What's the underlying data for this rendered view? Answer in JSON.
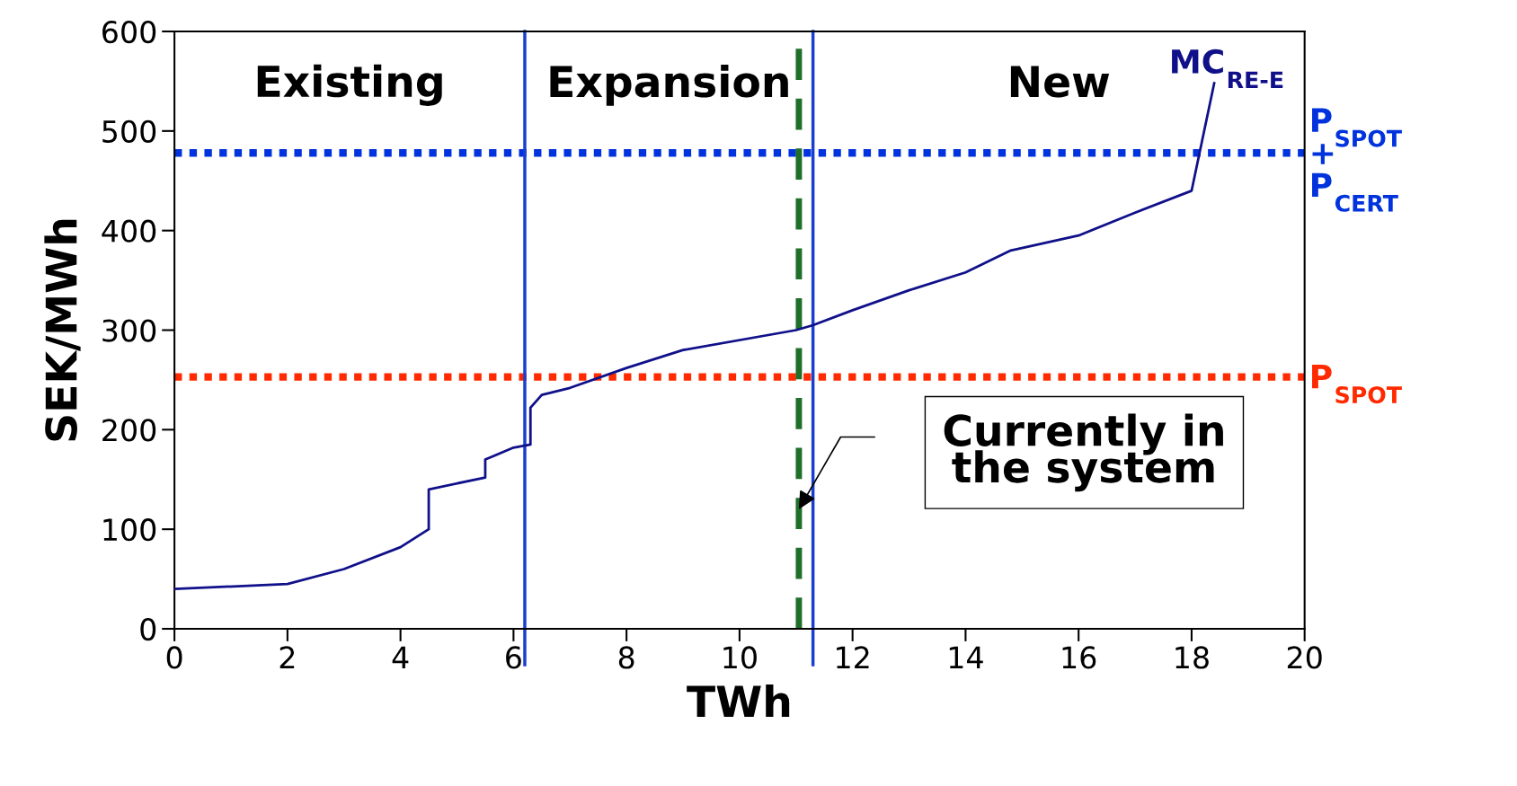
{
  "chart_data": {
    "type": "line",
    "xlabel": "TWh",
    "ylabel": "SEK/MWh",
    "xlim": [
      0,
      20
    ],
    "xticks": [
      0,
      2,
      4,
      6,
      8,
      10,
      12,
      14,
      16,
      18,
      20
    ],
    "ylim": [
      0,
      600
    ],
    "yticks": [
      0,
      100,
      200,
      300,
      400,
      500,
      600
    ],
    "grid": false,
    "marker": "none",
    "line_style": "solid",
    "series": [
      {
        "name": "MC$_{RE-E}$",
        "color": "#10108a",
        "x": [
          0,
          2,
          3,
          4,
          4.5,
          4.5,
          5.5,
          5.5,
          6,
          6.3,
          6.3,
          6.5,
          7,
          8,
          9,
          11,
          11.3,
          12,
          13,
          14,
          14.8,
          16,
          17,
          18,
          18.4
        ],
        "values": [
          40,
          45,
          60,
          82,
          100,
          140,
          152,
          170,
          182,
          185,
          222,
          235,
          242,
          262,
          280,
          300,
          305,
          320,
          340,
          358,
          380,
          395,
          418,
          440,
          548
        ]
      }
    ],
    "ref_lines": [
      {
        "axis": "y",
        "value": 478,
        "label": "P$_{SPOT}$\n+\nP$_{CERT}$",
        "color": "#0033dd",
        "line_style": "dotted"
      },
      {
        "axis": "y",
        "value": 253,
        "label": "P$_{SPOT}$",
        "color": "#ff2a00",
        "line_style": "dotted"
      },
      {
        "axis": "x",
        "value": 6.2,
        "color": "#1a3fd0",
        "line_style": "solid"
      },
      {
        "axis": "x",
        "value": 11.3,
        "color": "#1a3fd0",
        "line_style": "solid"
      },
      {
        "axis": "x",
        "value": 11.05,
        "color": "#1f6e2a",
        "line_style": "dashed"
      }
    ],
    "annotations": [
      "Existing",
      "Expansion",
      "New",
      "Currently in\nthe system"
    ]
  }
}
